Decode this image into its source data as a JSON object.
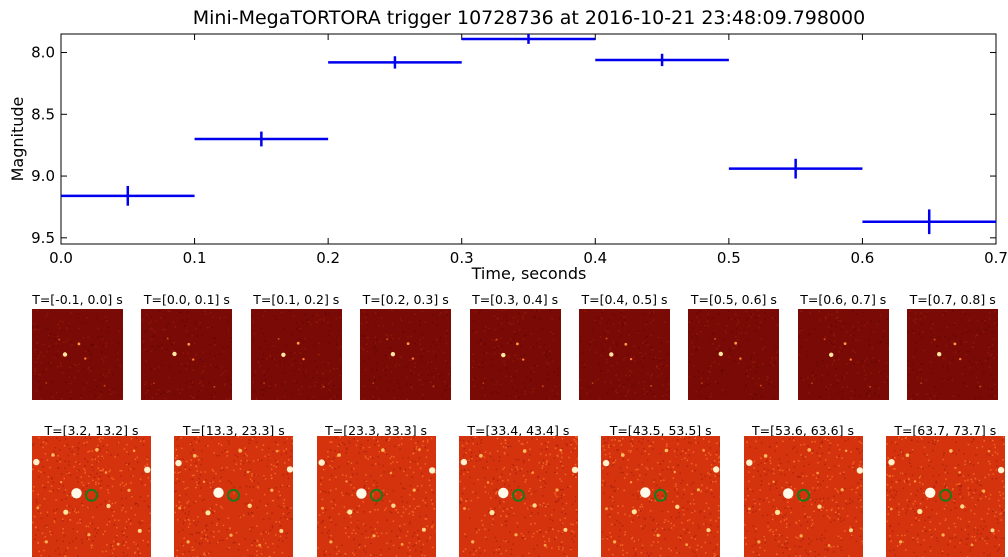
{
  "chart_data": {
    "type": "scatter",
    "title": "Mini-MegaTORTORA trigger 10728736 at 2016-10-21 23:48:09.798000",
    "xlabel": "Time, seconds",
    "ylabel": "Magnitude",
    "xlim": [
      0.0,
      0.7
    ],
    "ylim": [
      9.55,
      7.85
    ],
    "y_inverted": true,
    "grid": false,
    "x_ticks": [
      "0.0",
      "0.1",
      "0.2",
      "0.3",
      "0.4",
      "0.5",
      "0.6",
      "0.7"
    ],
    "y_ticks": [
      "8.0",
      "8.5",
      "9.0",
      "9.5"
    ],
    "series": [
      {
        "color": "#0000ee",
        "points": [
          {
            "x": 0.05,
            "y": 9.16,
            "xerr": 0.05,
            "yerr": 0.08
          },
          {
            "x": 0.15,
            "y": 8.7,
            "xerr": 0.05,
            "yerr": 0.06
          },
          {
            "x": 0.25,
            "y": 8.08,
            "xerr": 0.05,
            "yerr": 0.05
          },
          {
            "x": 0.35,
            "y": 7.89,
            "xerr": 0.05,
            "yerr": 0.04
          },
          {
            "x": 0.45,
            "y": 8.06,
            "xerr": 0.05,
            "yerr": 0.05
          },
          {
            "x": 0.55,
            "y": 8.94,
            "xerr": 0.05,
            "yerr": 0.08
          },
          {
            "x": 0.65,
            "y": 9.37,
            "xerr": 0.05,
            "yerr": 0.1
          }
        ]
      }
    ]
  },
  "short_panels": [
    {
      "label": "T=[-0.1, 0.0] s"
    },
    {
      "label": "T=[0.0, 0.1] s"
    },
    {
      "label": "T=[0.1, 0.2] s"
    },
    {
      "label": "T=[0.2, 0.3] s"
    },
    {
      "label": "T=[0.3, 0.4] s"
    },
    {
      "label": "T=[0.4, 0.5] s"
    },
    {
      "label": "T=[0.5, 0.6] s"
    },
    {
      "label": "T=[0.6, 0.7] s"
    },
    {
      "label": "T=[0.7, 0.8] s"
    }
  ],
  "long_panels": [
    {
      "label": "T=[3.2, 13.2] s"
    },
    {
      "label": "T=[13.3, 23.3] s"
    },
    {
      "label": "T=[23.3, 33.3] s"
    },
    {
      "label": "T=[33.4, 43.4] s"
    },
    {
      "label": "T=[43.5, 53.5] s"
    },
    {
      "label": "T=[53.6, 63.6] s"
    },
    {
      "label": "T=[63.7, 73.7] s"
    }
  ],
  "colors": {
    "short_background": "#7a0a05",
    "long_background": "#d4330e",
    "highlight_circle": "#1a7a1a"
  }
}
